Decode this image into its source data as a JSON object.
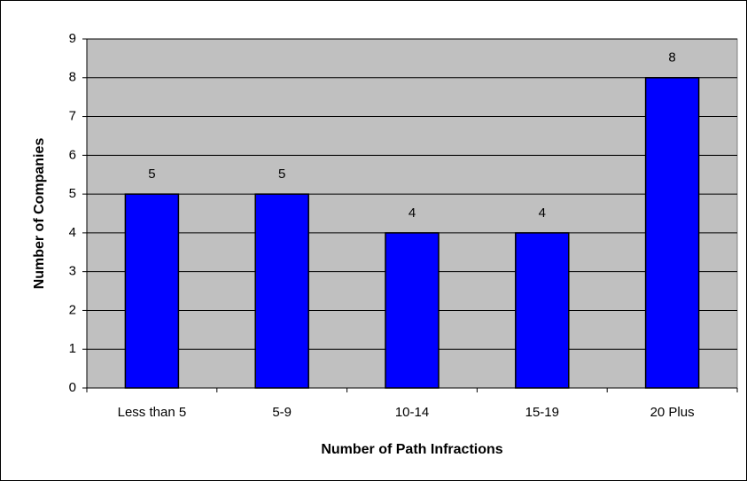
{
  "chart_data": {
    "type": "bar",
    "x_label": "Number of Path Infractions",
    "y_label": "Number of Companies",
    "categories": [
      "Less than 5",
      "5-9",
      "10-14",
      "15-19",
      "20 Plus"
    ],
    "values": [
      5,
      5,
      4,
      4,
      8
    ],
    "color": "#0000ff",
    "ylim": [
      0,
      9
    ],
    "yticks": [
      0,
      1,
      2,
      3,
      4,
      5,
      6,
      7,
      8,
      9
    ],
    "grid": true
  }
}
